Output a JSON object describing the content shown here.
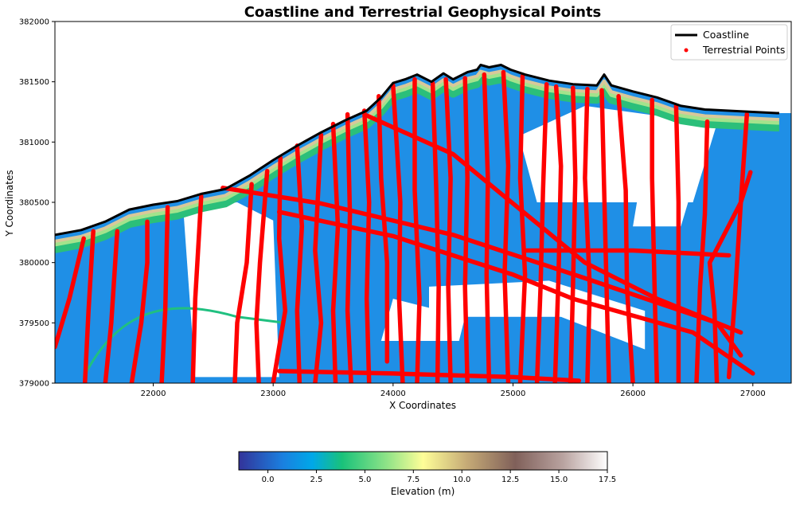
{
  "chart_data": {
    "type": "map-scatter",
    "title": "Coastline and Terrestrial Geophysical Points",
    "xlabel": "X Coordinates",
    "ylabel": "Y Coordinates",
    "xlim": [
      21180,
      27320
    ],
    "ylim": [
      379000,
      382000
    ],
    "x_ticks": [
      22000,
      23000,
      24000,
      25000,
      26000,
      27000
    ],
    "y_ticks": [
      379000,
      379500,
      380000,
      380500,
      381000,
      381500,
      382000
    ],
    "x_tick_labels": [
      "22000",
      "23000",
      "24000",
      "25000",
      "26000",
      "27000"
    ],
    "y_tick_labels": [
      "379000",
      "379500",
      "380000",
      "380500",
      "381000",
      "381500",
      "382000"
    ],
    "legend": {
      "position": "top-right",
      "entries": [
        {
          "name": "Coastline",
          "color": "#000000",
          "marker": "line"
        },
        {
          "name": "Terrestrial Points",
          "color": "#ff0000",
          "marker": "dot"
        }
      ]
    },
    "colorbar": {
      "label": "Elevation (m)",
      "colormap": "terrain",
      "range": [
        -1.5,
        17.5
      ],
      "ticks": [
        0.0,
        2.5,
        5.0,
        7.5,
        10.0,
        12.5,
        15.0,
        17.5
      ],
      "tick_labels": [
        "0.0",
        "2.5",
        "5.0",
        "7.5",
        "10.0",
        "12.5",
        "15.0",
        "17.5"
      ]
    },
    "coastline": [
      [
        21180,
        380230
      ],
      [
        21400,
        380270
      ],
      [
        21600,
        380340
      ],
      [
        21800,
        380440
      ],
      [
        22000,
        380480
      ],
      [
        22200,
        380510
      ],
      [
        22400,
        380570
      ],
      [
        22600,
        380610
      ],
      [
        22800,
        380720
      ],
      [
        23000,
        380850
      ],
      [
        23200,
        380970
      ],
      [
        23400,
        381080
      ],
      [
        23600,
        381180
      ],
      [
        23780,
        381260
      ],
      [
        23900,
        381370
      ],
      [
        24000,
        381490
      ],
      [
        24100,
        381520
      ],
      [
        24200,
        381560
      ],
      [
        24320,
        381500
      ],
      [
        24420,
        381570
      ],
      [
        24500,
        381520
      ],
      [
        24620,
        381580
      ],
      [
        24700,
        381600
      ],
      [
        24730,
        381640
      ],
      [
        24800,
        381620
      ],
      [
        24900,
        381640
      ],
      [
        24980,
        381600
      ],
      [
        25100,
        381560
      ],
      [
        25300,
        381510
      ],
      [
        25500,
        381480
      ],
      [
        25700,
        381470
      ],
      [
        25760,
        381560
      ],
      [
        25820,
        381470
      ],
      [
        26000,
        381420
      ],
      [
        26200,
        381370
      ],
      [
        26400,
        381300
      ],
      [
        26600,
        381270
      ],
      [
        26800,
        381260
      ],
      [
        27000,
        381250
      ],
      [
        27200,
        381240
      ],
      [
        27220,
        381240
      ]
    ],
    "terrestrial_points": {
      "survey_lines": [
        [
          [
            21180,
            379300
          ],
          [
            21300,
            379700
          ],
          [
            21420,
            380200
          ]
        ],
        [
          [
            21430,
            379000
          ],
          [
            21460,
            379600
          ],
          [
            21500,
            380260
          ]
        ],
        [
          [
            21600,
            379000
          ],
          [
            21650,
            379500
          ],
          [
            21700,
            380260
          ]
        ],
        [
          [
            21820,
            379000
          ],
          [
            21900,
            379500
          ],
          [
            21950,
            380000
          ],
          [
            21950,
            380340
          ]
        ],
        [
          [
            22070,
            379000
          ],
          [
            22100,
            379600
          ],
          [
            22120,
            380460
          ]
        ],
        [
          [
            22330,
            379000
          ],
          [
            22350,
            379700
          ],
          [
            22400,
            380550
          ]
        ],
        [
          [
            22680,
            379000
          ],
          [
            22700,
            379500
          ],
          [
            22780,
            380000
          ],
          [
            22820,
            380650
          ]
        ],
        [
          [
            22880,
            379000
          ],
          [
            22860,
            379500
          ],
          [
            22890,
            380000
          ],
          [
            22950,
            380760
          ]
        ],
        [
          [
            23000,
            379000
          ],
          [
            23100,
            379600
          ],
          [
            23050,
            380200
          ],
          [
            23060,
            380870
          ]
        ],
        [
          [
            23220,
            379000
          ],
          [
            23200,
            379600
          ],
          [
            23240,
            380300
          ],
          [
            23200,
            380970
          ]
        ],
        [
          [
            23350,
            379000
          ],
          [
            23400,
            379500
          ],
          [
            23350,
            380100
          ],
          [
            23400,
            381060
          ]
        ],
        [
          [
            23520,
            379000
          ],
          [
            23500,
            379600
          ],
          [
            23540,
            380300
          ],
          [
            23500,
            381150
          ]
        ],
        [
          [
            23650,
            379000
          ],
          [
            23620,
            379600
          ],
          [
            23640,
            380400
          ],
          [
            23620,
            381230
          ]
        ],
        [
          [
            23800,
            379000
          ],
          [
            23780,
            379700
          ],
          [
            23800,
            380500
          ],
          [
            23760,
            381260
          ]
        ],
        [
          [
            23950,
            379180
          ],
          [
            23950,
            380000
          ],
          [
            23900,
            380700
          ],
          [
            23880,
            381380
          ]
        ],
        [
          [
            24080,
            379000
          ],
          [
            24050,
            379700
          ],
          [
            24060,
            380500
          ],
          [
            24000,
            381470
          ]
        ],
        [
          [
            24200,
            379000
          ],
          [
            24220,
            379700
          ],
          [
            24180,
            380600
          ],
          [
            24180,
            381520
          ]
        ],
        [
          [
            24370,
            379000
          ],
          [
            24380,
            379800
          ],
          [
            24360,
            380600
          ],
          [
            24330,
            381490
          ]
        ],
        [
          [
            24480,
            379000
          ],
          [
            24460,
            379800
          ],
          [
            24480,
            380700
          ],
          [
            24440,
            381520
          ]
        ],
        [
          [
            24620,
            379000
          ],
          [
            24600,
            379800
          ],
          [
            24620,
            380700
          ],
          [
            24600,
            381530
          ]
        ],
        [
          [
            24800,
            379000
          ],
          [
            24780,
            379900
          ],
          [
            24790,
            380700
          ],
          [
            24760,
            381560
          ]
        ],
        [
          [
            24960,
            379000
          ],
          [
            24930,
            379900
          ],
          [
            24960,
            380800
          ],
          [
            24920,
            381580
          ]
        ],
        [
          [
            25060,
            379000
          ],
          [
            25100,
            379900
          ],
          [
            25060,
            380700
          ],
          [
            25080,
            381550
          ]
        ],
        [
          [
            25200,
            379000
          ],
          [
            25230,
            379800
          ],
          [
            25250,
            380600
          ],
          [
            25280,
            381480
          ]
        ],
        [
          [
            25350,
            379000
          ],
          [
            25380,
            379900
          ],
          [
            25400,
            380800
          ],
          [
            25360,
            381460
          ]
        ],
        [
          [
            25480,
            379000
          ],
          [
            25500,
            379800
          ],
          [
            25520,
            380700
          ],
          [
            25500,
            381450
          ]
        ],
        [
          [
            25620,
            379000
          ],
          [
            25640,
            379800
          ],
          [
            25600,
            380700
          ],
          [
            25620,
            381440
          ]
        ],
        [
          [
            25800,
            379000
          ],
          [
            25780,
            379800
          ],
          [
            25760,
            380600
          ],
          [
            25740,
            381430
          ]
        ],
        [
          [
            26000,
            379000
          ],
          [
            25950,
            379800
          ],
          [
            25940,
            380600
          ],
          [
            25880,
            381380
          ]
        ],
        [
          [
            26200,
            379000
          ],
          [
            26180,
            379800
          ],
          [
            26160,
            380700
          ],
          [
            26160,
            381350
          ]
        ],
        [
          [
            26380,
            379000
          ],
          [
            26380,
            379700
          ],
          [
            26380,
            380500
          ],
          [
            26360,
            381300
          ]
        ],
        [
          [
            26530,
            379000
          ],
          [
            26560,
            379800
          ],
          [
            26600,
            380400
          ],
          [
            26620,
            381170
          ]
        ],
        [
          [
            26700,
            379000
          ],
          [
            26680,
            379600
          ],
          [
            26640,
            380000
          ],
          [
            26900,
            380500
          ],
          [
            26980,
            380750
          ]
        ],
        [
          [
            26800,
            379050
          ],
          [
            26850,
            379700
          ],
          [
            26900,
            380500
          ],
          [
            26950,
            381230
          ]
        ],
        [
          [
            22580,
            380620
          ],
          [
            23400,
            380490
          ],
          [
            24500,
            380230
          ],
          [
            25600,
            379870
          ],
          [
            26700,
            379500
          ],
          [
            26900,
            379230
          ]
        ],
        [
          [
            23050,
            380420
          ],
          [
            24000,
            380220
          ],
          [
            25000,
            379900
          ],
          [
            25500,
            379700
          ],
          [
            26500,
            379420
          ],
          [
            27000,
            379080
          ]
        ],
        [
          [
            23780,
            381220
          ],
          [
            24500,
            380900
          ],
          [
            25000,
            380490
          ],
          [
            25600,
            380000
          ],
          [
            26200,
            379700
          ],
          [
            26900,
            379420
          ]
        ],
        [
          [
            25100,
            380100
          ],
          [
            26000,
            380100
          ],
          [
            26800,
            380060
          ]
        ],
        [
          [
            23050,
            379100
          ],
          [
            24000,
            379080
          ],
          [
            25000,
            379050
          ],
          [
            25550,
            379020
          ]
        ]
      ]
    }
  }
}
